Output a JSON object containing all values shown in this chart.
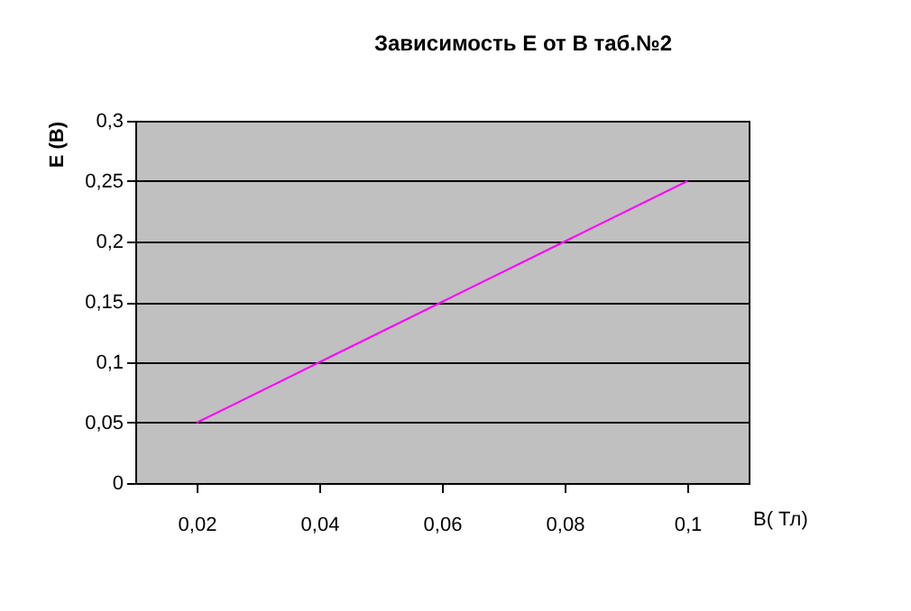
{
  "chart_data": {
    "type": "line",
    "title": "Зависимость E от B таб.№2",
    "xlabel": "B( Тл)",
    "ylabel": "E (B)",
    "categories": [
      "0,02",
      "0,04",
      "0,06",
      "0,08",
      "0,1"
    ],
    "series": [
      {
        "color": "#ff00ff",
        "values": [
          0.05,
          0.1,
          0.15,
          0.2,
          0.25
        ]
      }
    ],
    "ylim": [
      0,
      0.3
    ],
    "yticks": [
      0,
      {
        "value": 0.05,
        "label": "0,05"
      },
      {
        "value": 0.1,
        "label": "0,1"
      },
      {
        "value": 0.15,
        "label": "0,15"
      },
      {
        "value": 0.2,
        "label": "0,2"
      },
      {
        "value": 0.25,
        "label": "0,25"
      },
      {
        "value": 0.3,
        "label": "0,3"
      }
    ],
    "grid": "y",
    "marker": "none",
    "line_style": "solid"
  }
}
